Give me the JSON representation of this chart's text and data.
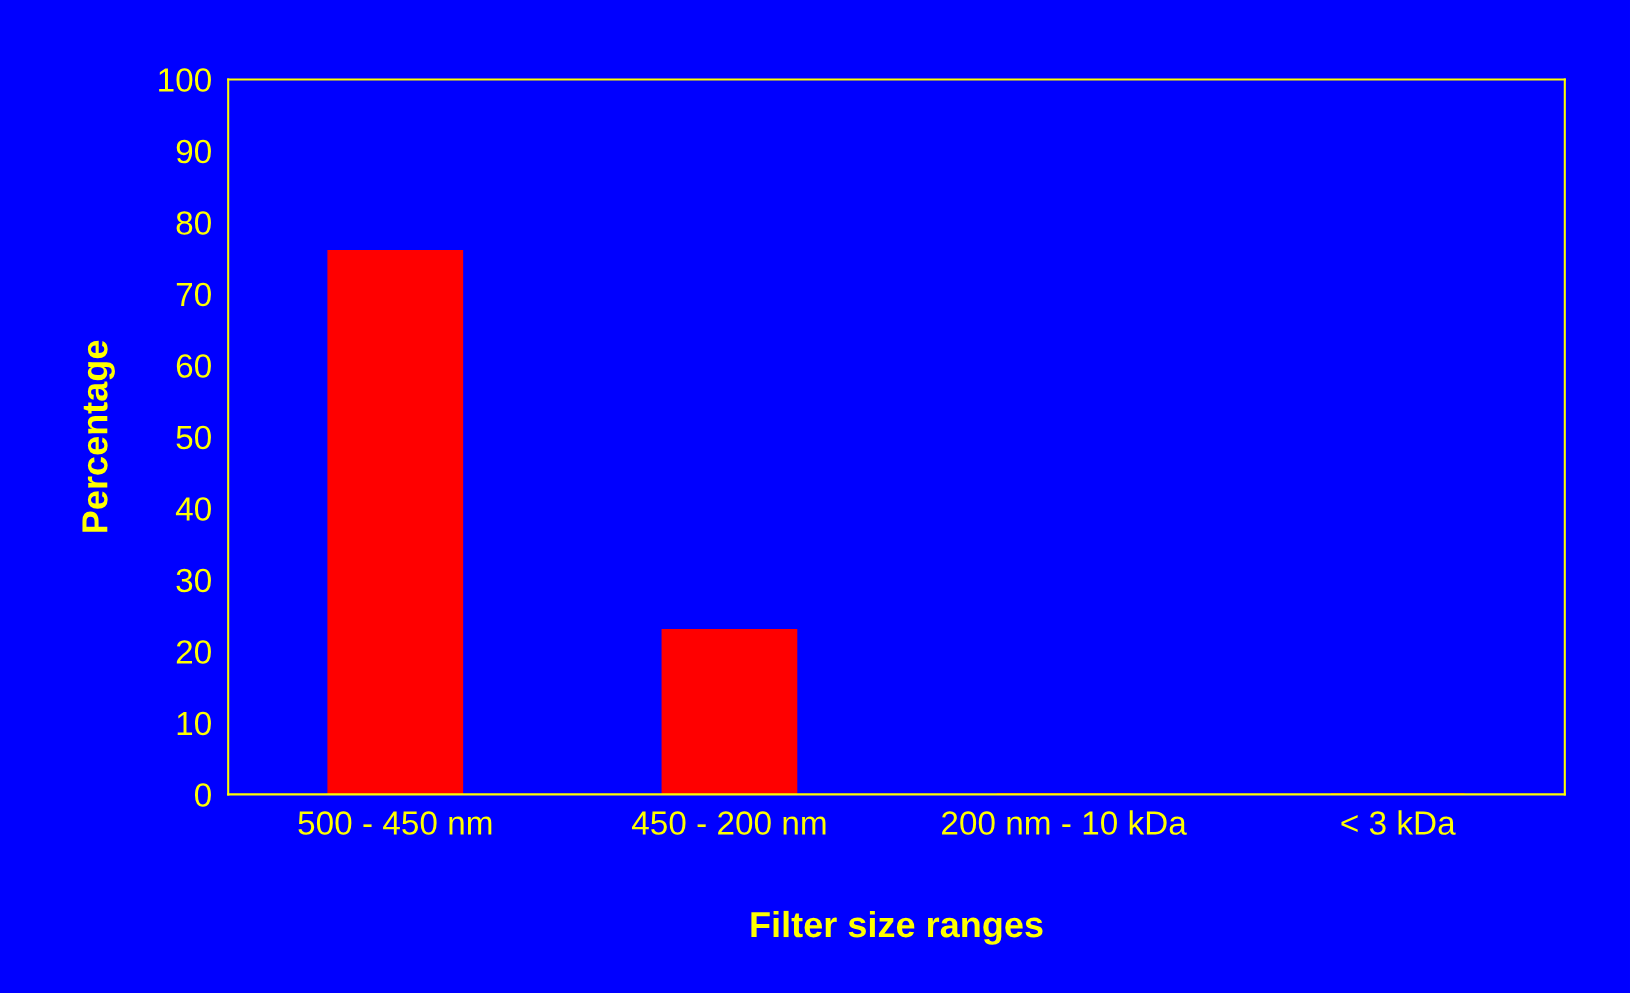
{
  "chart_data": {
    "type": "bar",
    "categories": [
      "500 - 450 nm",
      "450 - 200 nm",
      "200 nm - 10 kDa",
      "< 3 kDa"
    ],
    "values": [
      76,
      23,
      0,
      0
    ],
    "color": "#ff0000",
    "xlabel": "Filter size ranges",
    "ylabel": "Percentage",
    "ylim": [
      0,
      100
    ],
    "yticks": [
      0,
      10,
      20,
      30,
      40,
      50,
      60,
      70,
      80,
      90,
      100
    ],
    "grid": false,
    "legend": false
  }
}
